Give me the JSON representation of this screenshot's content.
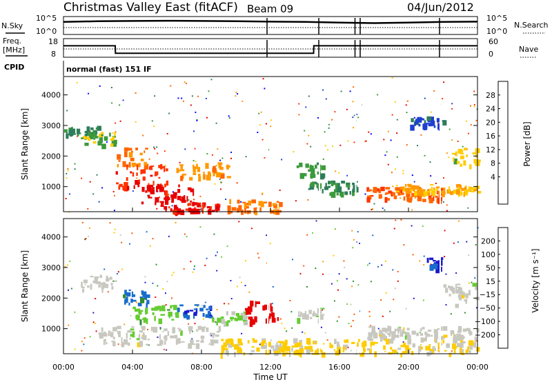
{
  "header": {
    "title": "Christmas Valley East (fitACF)",
    "beam": "Beam 09",
    "date": "04/Jun/2012"
  },
  "panels": {
    "sky_label": "N.Sky",
    "sky_ticks_left": [
      "10^5",
      "10^0"
    ],
    "sky_ticks_right": [
      "10^5",
      "10^0"
    ],
    "search_label": "N.Search",
    "freq_label_1": "Freq.",
    "freq_label_2": "[MHz]",
    "freq_ticks": [
      "18",
      "8"
    ],
    "nave_ticks": [
      "60",
      "0"
    ],
    "nave_label": "Nave",
    "cpid_label": "CPID",
    "cpid_text": "normal (fast) 151 IF"
  },
  "axes": {
    "xlabel": "Time UT",
    "xticks": [
      "00:00",
      "04:00",
      "08:00",
      "12:00",
      "16:00",
      "20:00",
      "00:00"
    ],
    "ylabel": "Slant Range [km]",
    "yticks": [
      "4000",
      "3000",
      "2000",
      "1000"
    ]
  },
  "colorbars": {
    "power": {
      "label": "Power [dB]",
      "ticks": [
        "28",
        "24",
        "20",
        "16",
        "12",
        "8",
        "4"
      ],
      "colors": [
        "#e60000",
        "#ff3300",
        "#ff6600",
        "#ff9900",
        "#ffcc00",
        "#3c9a3c",
        "#2e7d5a",
        "#1f3fd0",
        "#0000ff"
      ]
    },
    "velocity": {
      "label": "Velocity [m s⁻¹]",
      "ticks": [
        "200",
        "100",
        "50",
        "15",
        "−15",
        "−50",
        "−100",
        "−200"
      ],
      "colors": [
        "#1a1acc",
        "#1a6ccc",
        "#2e8b2e",
        "#66cc33",
        "#c8c8c0",
        "#ffcc00",
        "#ff9900",
        "#ff5500",
        "#e60000"
      ]
    }
  },
  "chart_data": [
    {
      "type": "heatmap",
      "title": "Power",
      "xlabel": "Time UT",
      "ylabel": "Slant Range [km]",
      "xlim": [
        0,
        24
      ],
      "ylim": [
        180,
        4600
      ],
      "colorbar_label": "Power [dB]",
      "cbar_range": [
        0,
        32
      ],
      "regions": [
        {
          "t": [
            0.0,
            2.0
          ],
          "r": [
            2700,
            3000
          ],
          "v": 10
        },
        {
          "t": [
            1.0,
            3.0
          ],
          "r": [
            2400,
            2800
          ],
          "v": 14
        },
        {
          "t": [
            3.0,
            4.8
          ],
          "r": [
            1700,
            2300
          ],
          "v": 22
        },
        {
          "t": [
            3.0,
            6.0
          ],
          "r": [
            1000,
            1800
          ],
          "v": 27
        },
        {
          "t": [
            4.5,
            7.5
          ],
          "r": [
            500,
            1100
          ],
          "v": 30
        },
        {
          "t": [
            5.5,
            9.0
          ],
          "r": [
            200,
            500
          ],
          "v": 29
        },
        {
          "t": [
            6.5,
            9.5
          ],
          "r": [
            1300,
            1800
          ],
          "v": 20
        },
        {
          "t": [
            9.5,
            12.5
          ],
          "r": [
            200,
            600
          ],
          "v": 22
        },
        {
          "t": [
            13.5,
            15.0
          ],
          "r": [
            1400,
            1800
          ],
          "v": 12
        },
        {
          "t": [
            14.0,
            17.0
          ],
          "r": [
            800,
            1200
          ],
          "v": 10
        },
        {
          "t": [
            17.5,
            22.0
          ],
          "r": [
            600,
            1000
          ],
          "v": 24
        },
        {
          "t": [
            19.0,
            24.0
          ],
          "r": [
            800,
            1100
          ],
          "v": 18
        },
        {
          "t": [
            22.5,
            24.0
          ],
          "r": [
            1700,
            2300
          ],
          "v": 16
        },
        {
          "t": [
            20.0,
            22.0
          ],
          "r": [
            3000,
            3300
          ],
          "v": 6
        }
      ]
    },
    {
      "type": "heatmap",
      "title": "Velocity",
      "xlabel": "Time UT",
      "ylabel": "Slant Range [km]",
      "xlim": [
        0,
        24
      ],
      "ylim": [
        180,
        4600
      ],
      "colorbar_label": "Velocity [m s⁻¹]",
      "cbar_range": [
        -240,
        240
      ],
      "regions": [
        {
          "t": [
            1.0,
            3.0
          ],
          "r": [
            2300,
            2800
          ],
          "v": 0
        },
        {
          "t": [
            3.2,
            5.0
          ],
          "r": [
            1800,
            2300
          ],
          "v": 150
        },
        {
          "t": [
            4.0,
            6.5
          ],
          "r": [
            1300,
            1800
          ],
          "v": 60
        },
        {
          "t": [
            6.5,
            8.5
          ],
          "r": [
            1400,
            1800
          ],
          "v": 180
        },
        {
          "t": [
            8.5,
            10.5
          ],
          "r": [
            1100,
            1600
          ],
          "v": 40
        },
        {
          "t": [
            10.5,
            12.5
          ],
          "r": [
            1200,
            2000
          ],
          "v": -220
        },
        {
          "t": [
            2.0,
            9.0
          ],
          "r": [
            500,
            1100
          ],
          "v": 0
        },
        {
          "t": [
            9.0,
            24.0
          ],
          "r": [
            200,
            700
          ],
          "v": -40
        },
        {
          "t": [
            13.5,
            15.0
          ],
          "r": [
            1300,
            1700
          ],
          "v": 5
        },
        {
          "t": [
            17.5,
            24.0
          ],
          "r": [
            700,
            1100
          ],
          "v": 0
        },
        {
          "t": [
            21.0,
            22.0
          ],
          "r": [
            3000,
            3400
          ],
          "v": 200
        },
        {
          "t": [
            22.0,
            24.0
          ],
          "r": [
            1800,
            2500
          ],
          "v": 0
        }
      ]
    },
    {
      "type": "line",
      "title": "N.Sky",
      "xlim": [
        0,
        24
      ],
      "x": [
        0,
        2,
        4,
        6,
        8,
        10,
        12,
        14,
        16,
        18,
        20,
        22,
        24
      ],
      "series": [
        {
          "name": "N.Sky",
          "values": [
            5000,
            8000,
            10000,
            12000,
            10000,
            8000,
            6000,
            5000,
            3000,
            2000,
            3000,
            5000,
            6000
          ]
        }
      ]
    },
    {
      "type": "line",
      "title": "Freq.",
      "xlim": [
        0,
        24
      ],
      "x": [
        0,
        3,
        3.01,
        14.5,
        14.51,
        24
      ],
      "series": [
        {
          "name": "Freq. [MHz]",
          "values": [
            14.5,
            14.5,
            10,
            10,
            14.5,
            14.5
          ]
        }
      ]
    }
  ]
}
